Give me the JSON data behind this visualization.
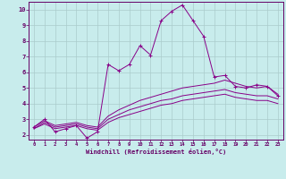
{
  "title": "",
  "xlabel": "Windchill (Refroidissement éolien,°C)",
  "ylabel": "",
  "background_color": "#c8ecec",
  "line_color": "#880088",
  "grid_color": "#aacccc",
  "xlim": [
    -0.5,
    23.5
  ],
  "ylim": [
    1.7,
    10.5
  ],
  "xticks": [
    0,
    1,
    2,
    3,
    4,
    5,
    6,
    7,
    8,
    9,
    10,
    11,
    12,
    13,
    14,
    15,
    16,
    17,
    18,
    19,
    20,
    21,
    22,
    23
  ],
  "yticks": [
    2,
    3,
    4,
    5,
    6,
    7,
    8,
    9,
    10
  ],
  "series": [
    {
      "x": [
        0,
        1,
        2,
        3,
        4,
        5,
        6,
        7,
        8,
        9,
        10,
        11,
        12,
        13,
        14,
        15,
        16,
        17,
        18,
        19,
        20,
        21,
        22,
        23
      ],
      "y": [
        2.5,
        3.0,
        2.2,
        2.4,
        2.6,
        1.8,
        2.2,
        6.5,
        6.1,
        6.5,
        7.7,
        7.1,
        9.3,
        9.9,
        10.3,
        9.3,
        8.3,
        5.7,
        5.8,
        5.1,
        5.0,
        5.2,
        5.1,
        4.5
      ],
      "marker": "+"
    },
    {
      "x": [
        0,
        1,
        2,
        3,
        4,
        5,
        6,
        7,
        8,
        9,
        10,
        11,
        12,
        13,
        14,
        15,
        16,
        17,
        18,
        19,
        20,
        21,
        22,
        23
      ],
      "y": [
        2.5,
        2.9,
        2.6,
        2.7,
        2.8,
        2.6,
        2.5,
        3.2,
        3.6,
        3.9,
        4.2,
        4.4,
        4.6,
        4.8,
        5.0,
        5.1,
        5.2,
        5.3,
        5.5,
        5.3,
        5.1,
        5.0,
        5.1,
        4.6
      ],
      "marker": null
    },
    {
      "x": [
        0,
        1,
        2,
        3,
        4,
        5,
        6,
        7,
        8,
        9,
        10,
        11,
        12,
        13,
        14,
        15,
        16,
        17,
        18,
        19,
        20,
        21,
        22,
        23
      ],
      "y": [
        2.4,
        2.8,
        2.5,
        2.6,
        2.7,
        2.5,
        2.4,
        3.0,
        3.3,
        3.6,
        3.8,
        4.0,
        4.2,
        4.3,
        4.5,
        4.6,
        4.7,
        4.8,
        4.9,
        4.7,
        4.6,
        4.5,
        4.5,
        4.3
      ],
      "marker": null
    },
    {
      "x": [
        0,
        1,
        2,
        3,
        4,
        5,
        6,
        7,
        8,
        9,
        10,
        11,
        12,
        13,
        14,
        15,
        16,
        17,
        18,
        19,
        20,
        21,
        22,
        23
      ],
      "y": [
        2.4,
        2.7,
        2.4,
        2.5,
        2.6,
        2.4,
        2.3,
        2.8,
        3.1,
        3.3,
        3.5,
        3.7,
        3.9,
        4.0,
        4.2,
        4.3,
        4.4,
        4.5,
        4.6,
        4.4,
        4.3,
        4.2,
        4.2,
        4.0
      ],
      "marker": null
    }
  ]
}
